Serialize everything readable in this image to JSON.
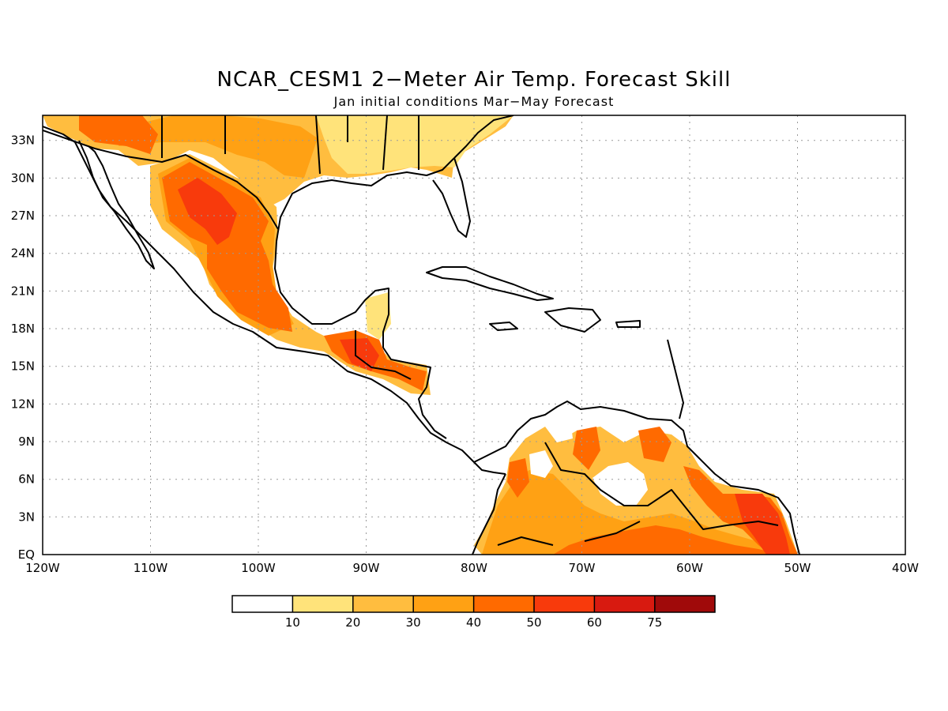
{
  "title": "NCAR_CESM1 2−Meter Air Temp. Forecast Skill",
  "subtitle": "Jan initial conditions  Mar−May Forecast",
  "chart_data": {
    "type": "map",
    "lon_range": [
      -120,
      -40
    ],
    "lat_range": [
      0,
      35
    ],
    "x_ticks": [
      "120W",
      "110W",
      "100W",
      "90W",
      "80W",
      "70W",
      "60W",
      "50W",
      "40W"
    ],
    "y_ticks": [
      "EQ",
      "3N",
      "6N",
      "9N",
      "12N",
      "15N",
      "18N",
      "21N",
      "24N",
      "27N",
      "30N",
      "33N"
    ],
    "grid": true,
    "colorbar": {
      "levels": [
        "10",
        "20",
        "30",
        "40",
        "50",
        "60",
        "75"
      ],
      "colors": [
        "#ffffff",
        "#ffe37a",
        "#ffbd3f",
        "#ffa114",
        "#ff6a00",
        "#f83a0c",
        "#d81a10",
        "#a00a0a"
      ]
    }
  }
}
